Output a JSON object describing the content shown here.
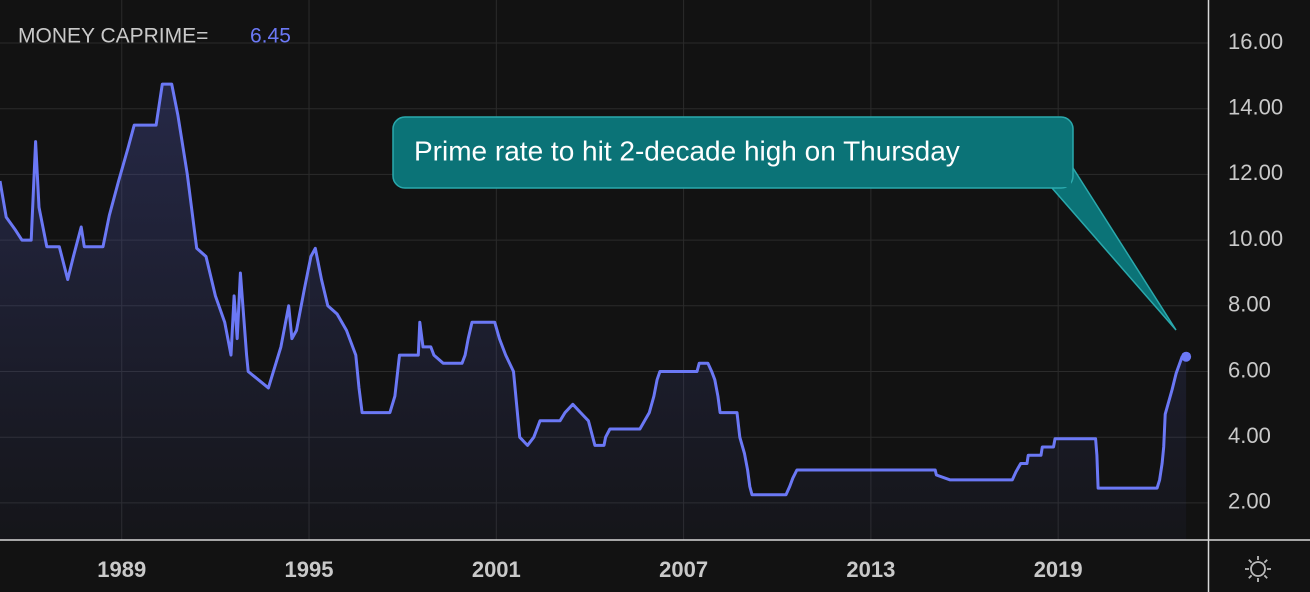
{
  "chart_data": {
    "type": "line",
    "annotation": "Prime rate to hit 2-decade high on Thursday",
    "series": [
      {
        "name": "MONEY CAPRIME=",
        "color": "#6b78f5",
        "x": [
          1985.1,
          1985.3,
          1985.6,
          1985.8,
          1986.1,
          1986.24,
          1986.35,
          1986.6,
          1987.0,
          1987.27,
          1987.45,
          1987.7,
          1987.8,
          1988.4,
          1988.6,
          1988.9,
          1989.2,
          1989.4,
          1990.1,
          1990.3,
          1990.6,
          1990.8,
          1991.1,
          1991.4,
          1991.7,
          1992.0,
          1992.3,
          1992.5,
          1992.6,
          1992.7,
          1992.8,
          1993.0,
          1993.05,
          1993.7,
          1994.1,
          1994.35,
          1994.45,
          1994.6,
          1994.85,
          1995.06,
          1995.2,
          1995.4,
          1995.6,
          1995.9,
          1996.2,
          1996.5,
          1996.6,
          1996.7,
          1997.59,
          1997.75,
          1997.9,
          1998.5,
          1998.55,
          1998.65,
          1998.9,
          1999.0,
          1999.3,
          1999.9,
          2000.0,
          2000.1,
          2000.22,
          2000.95,
          2001.1,
          2001.3,
          2001.55,
          2001.65,
          2001.75,
          2002.0,
          2002.2,
          2002.4,
          2003.04,
          2003.2,
          2003.45,
          2003.7,
          2003.95,
          2004.16,
          2004.45,
          2004.5,
          2004.64,
          2005.6,
          2005.75,
          2005.9,
          2006.05,
          2006.15,
          2006.24,
          2007.43,
          2007.5,
          2007.78,
          2007.9,
          2008.0,
          2008.1,
          2008.17,
          2008.71,
          2008.8,
          2008.95,
          2009.05,
          2009.12,
          2009.19,
          2010.28,
          2010.4,
          2010.5,
          2010.63,
          2015.06,
          2015.1,
          2015.54,
          2017.53,
          2017.65,
          2017.8,
          2018.0,
          2018.04,
          2018.45,
          2018.49,
          2018.85,
          2018.9,
          2020.2,
          2020.24,
          2020.28,
          2022.17,
          2022.25,
          2022.33,
          2022.38,
          2022.43,
          2022.65,
          2022.78,
          2022.97,
          2023.1
        ],
        "values": [
          11.8,
          10.7,
          10.3,
          10.0,
          10.0,
          13.0,
          11.0,
          9.8,
          9.8,
          8.8,
          9.5,
          10.4,
          9.8,
          9.8,
          10.75,
          11.8,
          12.8,
          13.5,
          13.5,
          14.75,
          14.75,
          13.8,
          12.0,
          9.75,
          9.5,
          8.3,
          7.5,
          6.5,
          8.3,
          7.0,
          9.0,
          6.5,
          6.0,
          5.5,
          6.75,
          8.0,
          7.0,
          7.25,
          8.5,
          9.5,
          9.75,
          8.8,
          8.0,
          7.75,
          7.25,
          6.5,
          5.5,
          4.75,
          4.75,
          5.25,
          6.5,
          6.5,
          7.5,
          6.75,
          6.75,
          6.5,
          6.25,
          6.25,
          6.5,
          7.0,
          7.5,
          7.5,
          7.0,
          6.5,
          6.0,
          5.0,
          4.0,
          3.75,
          4.0,
          4.5,
          4.5,
          4.75,
          5.0,
          4.75,
          4.5,
          3.75,
          3.75,
          4.0,
          4.25,
          4.25,
          4.5,
          4.75,
          5.25,
          5.75,
          6.0,
          6.0,
          6.25,
          6.25,
          6.0,
          5.75,
          5.25,
          4.75,
          4.75,
          4.0,
          3.5,
          3.0,
          2.5,
          2.25,
          2.25,
          2.5,
          2.75,
          3.0,
          3.0,
          2.85,
          2.7,
          2.7,
          2.95,
          3.2,
          3.2,
          3.45,
          3.45,
          3.7,
          3.7,
          3.95,
          3.95,
          3.45,
          2.45,
          2.45,
          2.7,
          3.2,
          3.7,
          4.7,
          5.45,
          5.95,
          6.45,
          6.45
        ]
      }
    ],
    "xlim": [
      1985.1,
      2023.8
    ],
    "xticks": [
      1989,
      1995,
      2001,
      2007,
      2013,
      2019
    ],
    "ylim": [
      0.87,
      17.31
    ],
    "yticks": [
      {
        "value": 2,
        "label": "2.00"
      },
      {
        "value": 4,
        "label": "4.00"
      },
      {
        "value": 6,
        "label": "6.00"
      },
      {
        "value": 8,
        "label": "8.00"
      },
      {
        "value": 10,
        "label": "10.00"
      },
      {
        "value": 12,
        "label": "12.00"
      },
      {
        "value": 14,
        "label": "14.00"
      },
      {
        "value": 16,
        "label": "16.00"
      }
    ],
    "grid": true
  }
}
